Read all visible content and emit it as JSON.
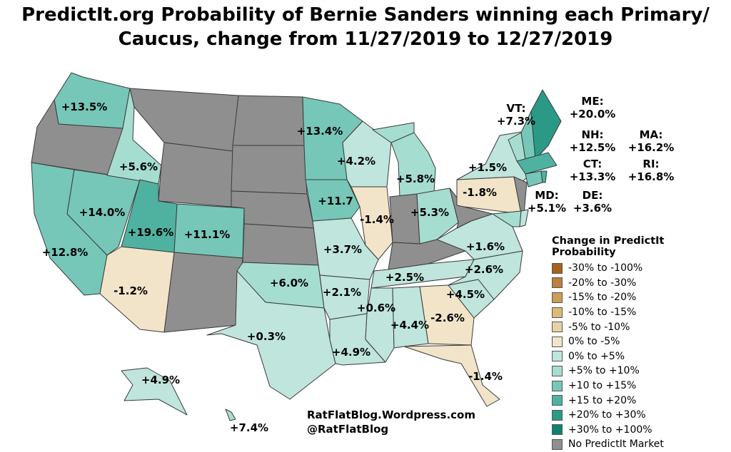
{
  "title": "PredictIt.org Probability of Bernie Sanders winning each Primary/ Caucus, change from 11/27/2019 to 12/27/2019",
  "title_lines": [
    "PredictIt.org Probability of Bernie Sanders winning each Primary/",
    "Caucus, change from 11/27/2019 to 12/27/2019"
  ],
  "legend": {
    "title": "Change in PredictIt Probability",
    "items": [
      {
        "label": "-30% to -100%",
        "color": "#a6611a"
      },
      {
        "label": "-20% to -30%",
        "color": "#bc7f3d"
      },
      {
        "label": "-15% to -20%",
        "color": "#cc9f57"
      },
      {
        "label": "-10% to -15%",
        "color": "#dcbb79"
      },
      {
        "label": "-5% to -10%",
        "color": "#e8d3a6"
      },
      {
        "label": "0% to -5%",
        "color": "#f1e4c8"
      },
      {
        "label": "0% to +5%",
        "color": "#bfe5dc"
      },
      {
        "label": "+5% to +10%",
        "color": "#a6ddd1"
      },
      {
        "label": "+10 to +15%",
        "color": "#76c7b8"
      },
      {
        "label": "+15 to +20%",
        "color": "#4fb2a1"
      },
      {
        "label": "+20% to +30%",
        "color": "#2a9a87"
      },
      {
        "label": "+30% to +100%",
        "color": "#0b836f"
      },
      {
        "label": "No PredictIt Market",
        "color": "#8f8f8f"
      }
    ]
  },
  "states": {
    "WA": "+13.5%",
    "OR": null,
    "CA": "+12.8%",
    "NV": "+14.0%",
    "ID": "+5.6%",
    "MT": null,
    "WY": null,
    "UT": "+19.6%",
    "AZ": "-1.2%",
    "CO": "+11.1%",
    "NM": null,
    "ND": null,
    "SD": null,
    "NE": null,
    "KS": null,
    "OK": "+6.0%",
    "TX": "+0.3%",
    "MN": "+13.4%",
    "IA": "+11.7",
    "MO": "+3.7%",
    "AR": "+2.1%",
    "LA": "+4.9%",
    "WI": "+4.2%",
    "IL": "-1.4%",
    "MI": "+5.8%",
    "IN": null,
    "OH": "+5.3%",
    "KY": null,
    "TN": "+2.5%",
    "MS": "+0.6%",
    "AL": "+4.4%",
    "GA": "-2.6%",
    "FL": "-1.4%",
    "SC": "+4.5%",
    "NC": "+2.6%",
    "VA": "+1.6%",
    "WV": null,
    "PA": "-1.8%",
    "NY": "+1.5%",
    "NJ": null,
    "AK": "+4.9%",
    "HI": "+7.4%"
  },
  "northeast_callouts": {
    "VT": {
      "name": "VT:",
      "value": "+7.3%"
    },
    "ME": {
      "name": "ME:",
      "value": "+20.0%"
    },
    "NH": {
      "name": "NH:",
      "value": "+12.5%"
    },
    "MA": {
      "name": "MA:",
      "value": "+16.2%"
    },
    "CT": {
      "name": "CT:",
      "value": "+13.3%"
    },
    "RI": {
      "name": "RI:",
      "value": "+16.8%"
    },
    "MD": {
      "name": "MD:",
      "value": "+5.1%"
    },
    "DE": {
      "name": "DE:",
      "value": "+3.6%"
    }
  },
  "credit": {
    "line1": "RatFlatBlog.Wordpress.com",
    "line2": "@RatFlatBlog"
  }
}
